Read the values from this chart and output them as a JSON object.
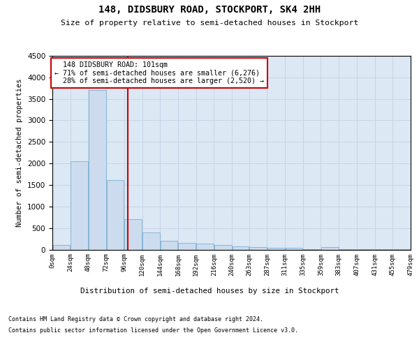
{
  "title": "148, DIDSBURY ROAD, STOCKPORT, SK4 2HH",
  "subtitle": "Size of property relative to semi-detached houses in Stockport",
  "xlabel": "Distribution of semi-detached houses by size in Stockport",
  "ylabel": "Number of semi-detached properties",
  "property_size": 101,
  "property_label": "148 DIDSBURY ROAD: 101sqm",
  "pct_smaller": 71,
  "count_smaller": 6276,
  "pct_larger": 28,
  "count_larger": 2520,
  "bin_edges": [
    0,
    24,
    48,
    72,
    96,
    120,
    144,
    168,
    192,
    216,
    240,
    263,
    287,
    311,
    335,
    359,
    383,
    407,
    431,
    455,
    479
  ],
  "bar_heights": [
    105,
    2050,
    3700,
    1620,
    700,
    390,
    195,
    160,
    130,
    100,
    80,
    55,
    45,
    40,
    5,
    60,
    5,
    5,
    5,
    5
  ],
  "bar_color": "#ccdcee",
  "bar_edge_color": "#7aafd4",
  "red_line_color": "#cc0000",
  "grid_color": "#c8d4e8",
  "background_color": "#dce8f4",
  "ylim_max": 4500,
  "yticks": [
    0,
    500,
    1000,
    1500,
    2000,
    2500,
    3000,
    3500,
    4000,
    4500
  ],
  "footer_line1": "Contains HM Land Registry data © Crown copyright and database right 2024.",
  "footer_line2": "Contains public sector information licensed under the Open Government Licence v3.0."
}
